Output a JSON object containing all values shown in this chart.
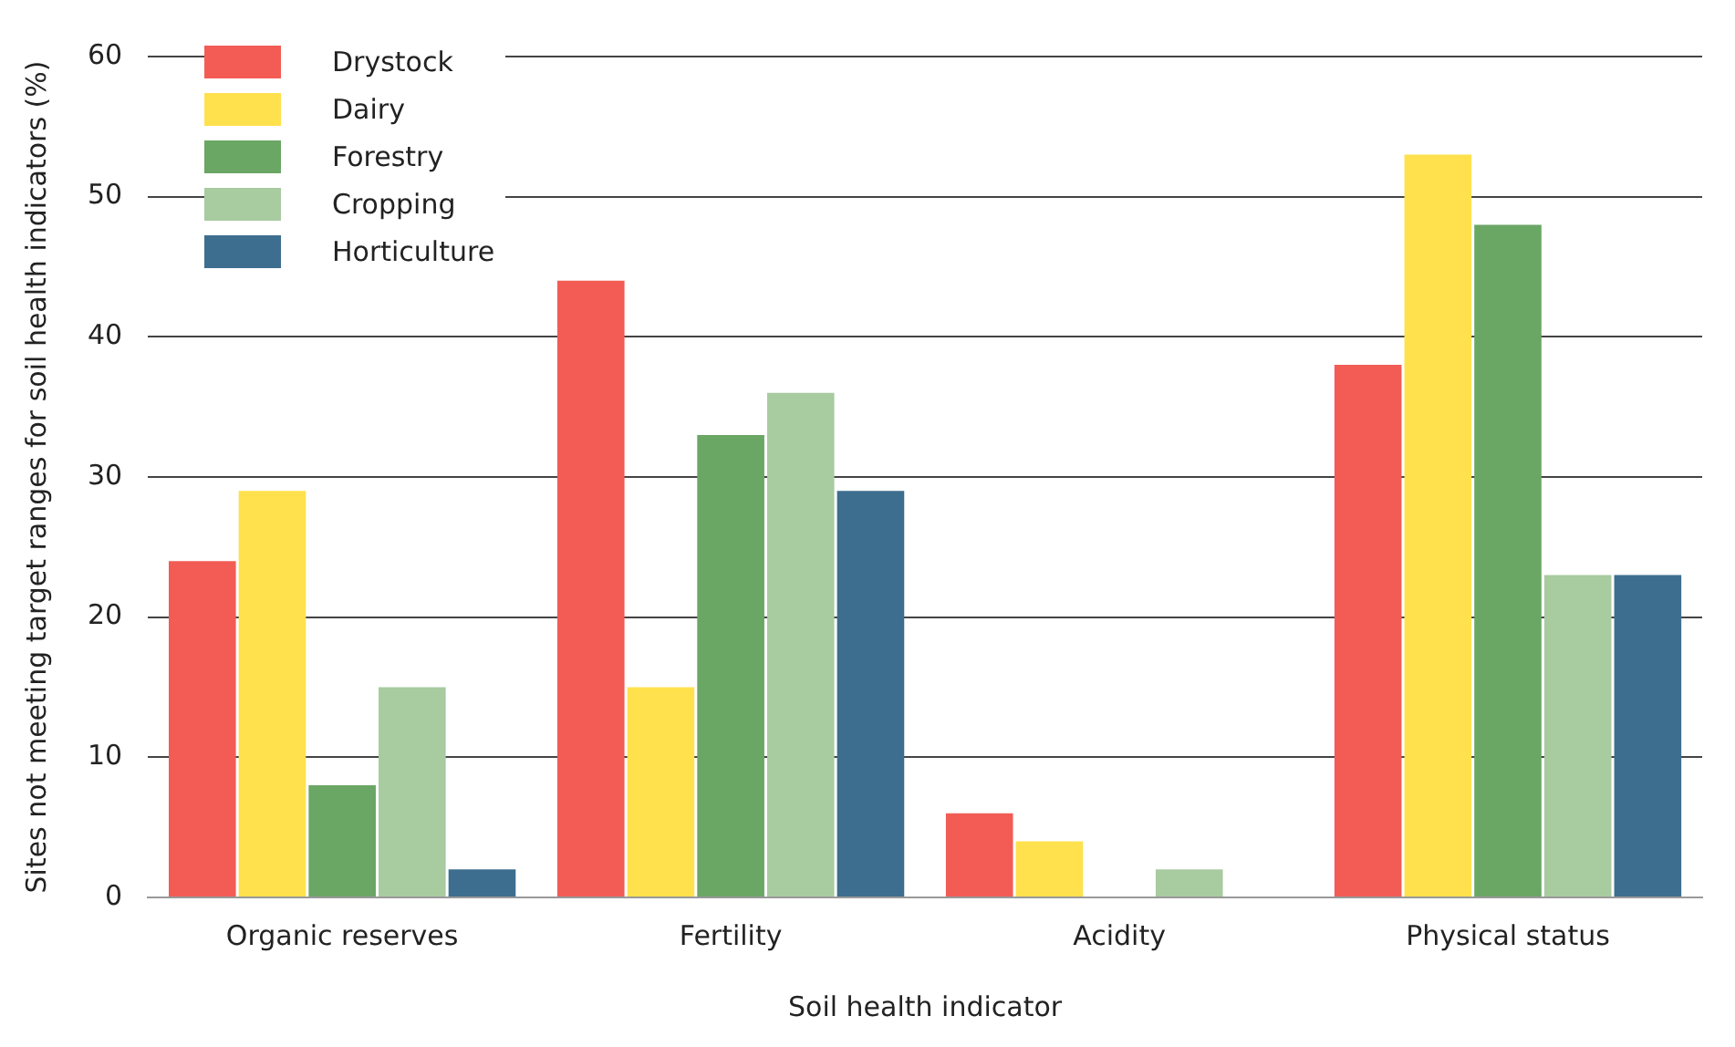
{
  "chart_data": {
    "type": "bar",
    "xlabel": "Soil health indicator",
    "ylabel": "Sites not meeting target ranges for soil health indicators (%)",
    "categories": [
      "Organic reserves",
      "Fertility",
      "Acidity",
      "Physical status"
    ],
    "series": [
      {
        "name": "Drystock",
        "color": "#f25c54",
        "values": [
          24,
          44,
          6,
          38
        ]
      },
      {
        "name": "Dairy",
        "color": "#ffe14d",
        "values": [
          29,
          15,
          4,
          53
        ]
      },
      {
        "name": "Forestry",
        "color": "#6aa664",
        "values": [
          8,
          33,
          0,
          48
        ]
      },
      {
        "name": "Cropping",
        "color": "#a8cba0",
        "values": [
          15,
          36,
          2,
          23
        ]
      },
      {
        "name": "Horticulture",
        "color": "#3d6e8f",
        "values": [
          2,
          29,
          0,
          23
        ]
      }
    ],
    "ylim": [
      0,
      60
    ],
    "yticks": [
      0,
      10,
      20,
      30,
      40,
      50,
      60
    ],
    "grid": "y",
    "legend": "top left"
  }
}
